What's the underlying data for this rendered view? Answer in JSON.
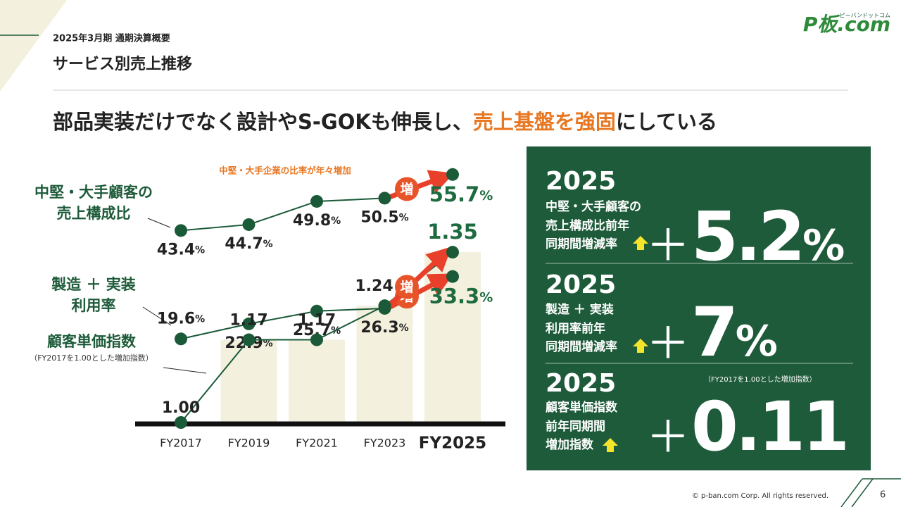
{
  "header": {
    "period": "2025年3月期 通期決算概要",
    "title": "サービス別売上推移",
    "logo": "P板.com",
    "logo_sub": "ピーバンドットコム"
  },
  "headline": {
    "before": "部品実装だけでなく設計やS-GOKも伸長し、",
    "highlight": "売上基盤を強固",
    "after": "にしている"
  },
  "chart_data": {
    "type": "line",
    "annotation": "中堅・大手企業の比率が年々増加",
    "badge": "増",
    "categories": [
      "FY2017",
      "FY2019",
      "FY2021",
      "FY2023",
      "FY2025"
    ],
    "ylim": [
      0,
      60
    ],
    "y2lim": [
      1.0,
      1.55
    ],
    "series": [
      {
        "name": "中堅・大手顧客の\n売上構成比",
        "color": "#1a5a38",
        "values": [
          43.4,
          44.7,
          49.8,
          50.5,
          55.7
        ],
        "value_labels": [
          "43.4%",
          "44.7%",
          "49.8%",
          "50.5%",
          "55.7%"
        ]
      },
      {
        "name": "製造 ＋ 実装\n利用率",
        "color": "#1a5a38",
        "values": [
          19.6,
          22.9,
          25.7,
          26.3,
          33.3
        ],
        "value_labels": [
          "19.6%",
          "22.9%",
          "25.7%",
          "26.3%",
          "33.3%"
        ]
      },
      {
        "name": "顧客単価指数",
        "note": "（FY2017を1.00とした増加指数）",
        "color": "#1a5a38",
        "axis": "y2",
        "bars": true,
        "bar_color": "#f3f0de",
        "values": [
          1.0,
          1.17,
          1.17,
          1.24,
          1.35
        ],
        "value_labels": [
          "1.00",
          "1.17",
          "1.17",
          "1.24",
          "1.35"
        ]
      }
    ]
  },
  "panel": {
    "sign": "＋",
    "items": [
      {
        "year": "2025",
        "label": "中堅・大手顧客の\n売上構成比前年\n同期間増減率",
        "value": "5.2",
        "unit": "%"
      },
      {
        "year": "2025",
        "label": "製造 ＋ 実装\n利用率前年\n同期間増減率",
        "value": "7",
        "unit": "%"
      },
      {
        "year": "2025",
        "label": "顧客単価指数\n前年同期間\n増加指数",
        "value": "0.11",
        "note": "（FY2017を1.00とした増加指数）"
      }
    ]
  },
  "footer": {
    "copyright": "© p-ban.com Corp. All rights reserved.",
    "page": "6"
  }
}
